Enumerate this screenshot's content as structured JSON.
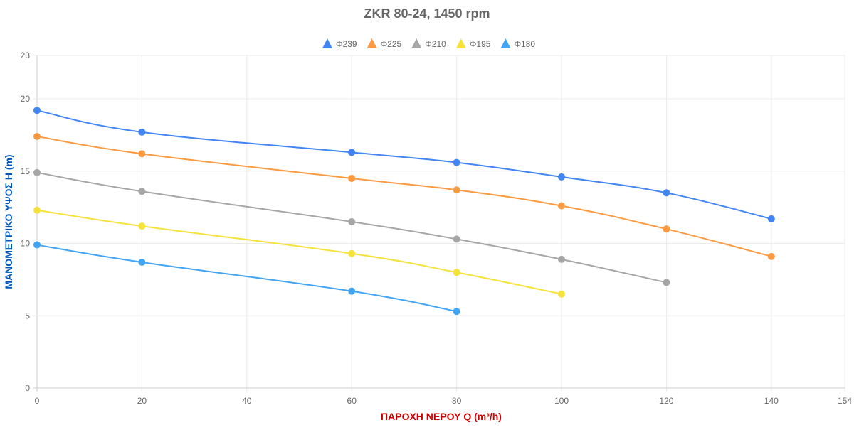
{
  "chart_data": {
    "type": "line",
    "title": "ZKR 80-24, 1450 rpm",
    "xlabel": "ΠΑΡΟΧΗ ΝΕΡΟΥ Q (m³/h)",
    "ylabel": "ΜΑΝΟΜΕΤΡΙΚΟ ΥΨΟΣ Η (m)",
    "xlim": [
      0,
      154
    ],
    "ylim": [
      0,
      23
    ],
    "xticks": [
      0,
      20,
      40,
      60,
      80,
      100,
      120,
      140,
      154
    ],
    "yticks": [
      0,
      5,
      10,
      15,
      20,
      23
    ],
    "grid": true,
    "legend_position": "top",
    "title_color": "#666666",
    "xlabel_color": "#cc0000",
    "ylabel_color": "#0055bb",
    "series": [
      {
        "name": "Φ239",
        "color": "#4285f4",
        "x": [
          0,
          20,
          60,
          80,
          100,
          120,
          140
        ],
        "y": [
          19.2,
          17.7,
          16.3,
          15.6,
          14.6,
          13.5,
          11.7
        ]
      },
      {
        "name": "Φ225",
        "color": "#fb9a40",
        "x": [
          0,
          20,
          60,
          80,
          100,
          120,
          140
        ],
        "y": [
          17.4,
          16.2,
          14.5,
          13.7,
          12.6,
          11.0,
          9.1
        ]
      },
      {
        "name": "Φ210",
        "color": "#a6a6a6",
        "x": [
          0,
          20,
          60,
          80,
          100,
          120
        ],
        "y": [
          14.9,
          13.6,
          11.5,
          10.3,
          8.9,
          7.3
        ]
      },
      {
        "name": "Φ195",
        "color": "#f5e23a",
        "x": [
          0,
          20,
          60,
          80,
          100
        ],
        "y": [
          12.3,
          11.2,
          9.3,
          8.0,
          6.5
        ]
      },
      {
        "name": "Φ180",
        "color": "#41a5f5",
        "x": [
          0,
          20,
          60,
          80
        ],
        "y": [
          9.9,
          8.7,
          6.7,
          5.3
        ]
      }
    ]
  }
}
